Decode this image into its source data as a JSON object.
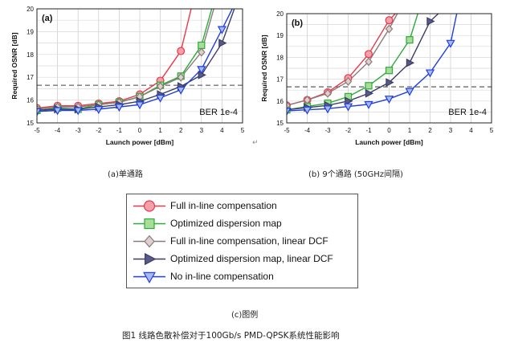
{
  "colors": {
    "full": "#e8384a",
    "full_fill": "#f4a0ab",
    "opt": "#2eab3a",
    "opt_fill": "#a7dd98",
    "full_lin": "#8a7b7b",
    "full_lin_fill": "#e0cfcf",
    "opt_lin": "#3c3c66",
    "opt_lin_fill": "#5a5a88",
    "no": "#1e3ee0",
    "no_fill": "#a9b9f2"
  },
  "chart_data": [
    {
      "type": "line",
      "panel_label": "(a)",
      "xlabel": "Launch power [dBm]",
      "ylabel": "Required OSNR [dB]",
      "xlim": [
        -5,
        5
      ],
      "ylim": [
        15,
        20
      ],
      "xticks": [
        "-5",
        "-4",
        "-3",
        "-2",
        "-1",
        "0",
        "1",
        "2",
        "3",
        "4",
        "5"
      ],
      "yticks": [
        "15",
        "16",
        "17",
        "18",
        "19",
        "20"
      ],
      "annotation": "BER 1e-4",
      "ber_threshold": 16.65,
      "series": [
        {
          "name": "Full in-line compensation",
          "marker": "circle",
          "color_key": "full",
          "x": [
            -5,
            -4,
            -3,
            -2,
            -1,
            0,
            1,
            2,
            2.5
          ],
          "y": [
            15.65,
            15.75,
            15.75,
            15.85,
            15.95,
            16.25,
            16.85,
            18.15,
            20
          ]
        },
        {
          "name": "Optimized dispersion map",
          "marker": "square",
          "color_key": "opt",
          "x": [
            -5,
            -4,
            -3,
            -2,
            -1,
            0,
            1,
            2,
            3,
            3.5
          ],
          "y": [
            15.55,
            15.65,
            15.6,
            15.8,
            15.9,
            16.15,
            16.65,
            17.05,
            18.4,
            20
          ]
        },
        {
          "name": "Full in-line compensation, linear DCF",
          "marker": "diamond",
          "color_key": "full_lin",
          "x": [
            -5,
            -4,
            -3,
            -2,
            -1,
            0,
            1,
            2,
            3,
            3.6
          ],
          "y": [
            15.6,
            15.7,
            15.7,
            15.8,
            15.9,
            16.15,
            16.6,
            17.0,
            18.1,
            20
          ]
        },
        {
          "name": "Optimized dispersion map, linear DCF",
          "marker": "tri_right",
          "color_key": "opt_lin",
          "x": [
            -5,
            -4,
            -3,
            -2,
            -1,
            0,
            1,
            2,
            3,
            4,
            4.6
          ],
          "y": [
            15.55,
            15.6,
            15.6,
            15.7,
            15.8,
            15.95,
            16.25,
            16.6,
            17.1,
            18.5,
            20
          ]
        },
        {
          "name": "No in-line compensation",
          "marker": "tri_down",
          "color_key": "no",
          "x": [
            -5,
            -4,
            -3,
            -2,
            -1,
            0,
            1,
            2,
            3,
            4,
            4.5
          ],
          "y": [
            15.5,
            15.55,
            15.55,
            15.6,
            15.7,
            15.8,
            16.1,
            16.45,
            17.35,
            19.1,
            20
          ]
        }
      ]
    },
    {
      "type": "line",
      "panel_label": "(b)",
      "xlabel": "Launch power [dBm]",
      "ylabel": "Required OSNR [dB]",
      "xlim": [
        -5,
        5
      ],
      "ylim": [
        15,
        20
      ],
      "xticks": [
        "-5",
        "-4",
        "-3",
        "-2",
        "-1",
        "0",
        "1",
        "2",
        "3",
        "4",
        "5"
      ],
      "yticks": [
        "15",
        "16",
        "17",
        "18",
        "19",
        "20"
      ],
      "annotation": "BER 1e-4",
      "ber_threshold": 16.65,
      "series": [
        {
          "name": "Full in-line compensation",
          "marker": "circle",
          "color_key": "full",
          "x": [
            -5,
            -4,
            -3,
            -2,
            -1,
            0,
            0.3
          ],
          "y": [
            15.8,
            16.05,
            16.4,
            17.05,
            18.15,
            19.7,
            20
          ]
        },
        {
          "name": "Optimized dispersion map",
          "marker": "square",
          "color_key": "opt",
          "x": [
            -5,
            -4,
            -3,
            -2,
            -1,
            0,
            1,
            1.4
          ],
          "y": [
            15.6,
            15.75,
            15.9,
            16.2,
            16.7,
            17.4,
            18.8,
            20
          ]
        },
        {
          "name": "Full in-line compensation, linear DCF",
          "marker": "diamond",
          "color_key": "full_lin",
          "x": [
            -5,
            -4,
            -3,
            -2,
            -1,
            0,
            0.4
          ],
          "y": [
            15.8,
            16.05,
            16.35,
            16.9,
            17.8,
            19.3,
            20
          ]
        },
        {
          "name": "Optimized dispersion map, linear DCF",
          "marker": "tri_right",
          "color_key": "opt_lin",
          "x": [
            -5,
            -4,
            -3,
            -2,
            -1,
            0,
            1,
            2,
            2.4
          ],
          "y": [
            15.6,
            15.7,
            15.8,
            16.0,
            16.35,
            16.85,
            17.75,
            19.65,
            20
          ]
        },
        {
          "name": "No in-line compensation",
          "marker": "tri_down",
          "color_key": "no",
          "x": [
            -5,
            -4,
            -3,
            -2,
            -1,
            0,
            1,
            2,
            3,
            3.3
          ],
          "y": [
            15.55,
            15.6,
            15.65,
            15.75,
            15.85,
            16.1,
            16.45,
            17.3,
            18.65,
            20
          ]
        }
      ]
    }
  ],
  "legend": {
    "items": [
      {
        "label": "Full in-line compensation",
        "marker": "circle",
        "color_key": "full"
      },
      {
        "label": "Optimized dispersion map",
        "marker": "square",
        "color_key": "opt"
      },
      {
        "label": "Full in-line compensation, linear DCF",
        "marker": "diamond",
        "color_key": "full_lin"
      },
      {
        "label": "Optimized dispersion map, linear DCF",
        "marker": "tri_right",
        "color_key": "opt_lin"
      },
      {
        "label": "No in-line compensation",
        "marker": "tri_down",
        "color_key": "no"
      }
    ]
  },
  "captions": {
    "a": "(a)单通路",
    "b": "(b) 9个通路 (50GHz间隔)",
    "c": "(c)图例",
    "figure": "图1 线路色散补偿对于100Gb/s PMD-QPSK系统性能影响",
    "stray_mark": "↵"
  }
}
